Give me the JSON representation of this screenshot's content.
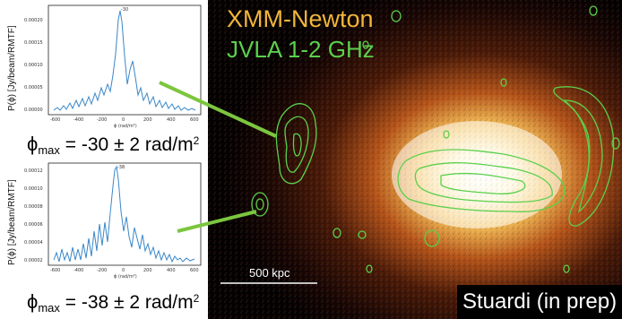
{
  "spectra": [
    {
      "peak_label": "-30",
      "y_axis_label": "P(ϕ) [Jy/beam/RMTF]",
      "x_axis_label": "ϕ (rad/m²)",
      "y_ticks": [
        "0.00020",
        "0.00015",
        "0.00010",
        "0.00005",
        "0.00000"
      ],
      "x_ticks": [
        "-600",
        "-400",
        "-200",
        "0",
        "200",
        "400",
        "600"
      ],
      "phi_max": {
        "symbol": "ϕ",
        "sub": "max",
        "text": " = -30 ± 2 rad/m",
        "sup": "2"
      },
      "color": "#3a87c8"
    },
    {
      "peak_label": "-38",
      "y_axis_label": "P(ϕ) [Jy/beam/RMTF]",
      "x_axis_label": "ϕ (rad/m²)",
      "y_ticks": [
        "0.00012",
        "0.00010",
        "0.00008",
        "0.00006",
        "0.00004",
        "0.00002"
      ],
      "x_ticks": [
        "-600",
        "-400",
        "-200",
        "0",
        "200",
        "400",
        "600"
      ],
      "phi_max": {
        "symbol": "ϕ",
        "sub": "max",
        "text": " = -38 ± 2 rad/m",
        "sup": "2"
      },
      "color": "#3a87c8"
    }
  ],
  "image": {
    "title_xray": "XMM-Newton",
    "title_radio": "JVLA 1-2 GHz",
    "scale_bar_label": "500 kpc",
    "credit": "Stuardi (in prep)",
    "colors": {
      "xray": "#f2b63a",
      "radio": "#5bd04c",
      "pointer": "#7cc63e"
    }
  }
}
